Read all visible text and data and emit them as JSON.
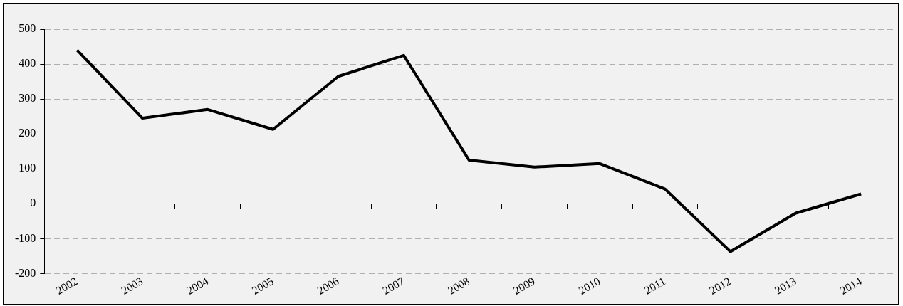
{
  "chart_data": {
    "type": "line",
    "categories": [
      "2002",
      "2003",
      "2004",
      "2005",
      "2006",
      "2007",
      "2008",
      "2009",
      "2010",
      "2011",
      "2012",
      "2013",
      "2014"
    ],
    "series": [
      {
        "color": "#000000",
        "values": [
          440,
          245,
          270,
          213,
          365,
          425,
          125,
          105,
          115,
          42,
          -137,
          -27,
          28
        ]
      }
    ],
    "ylim": [
      -200,
      500
    ],
    "yticks": [
      -200,
      -100,
      0,
      100,
      200,
      300,
      400,
      500
    ],
    "grid": "y",
    "legend": false,
    "marker": "none",
    "line_style": "solid"
  }
}
